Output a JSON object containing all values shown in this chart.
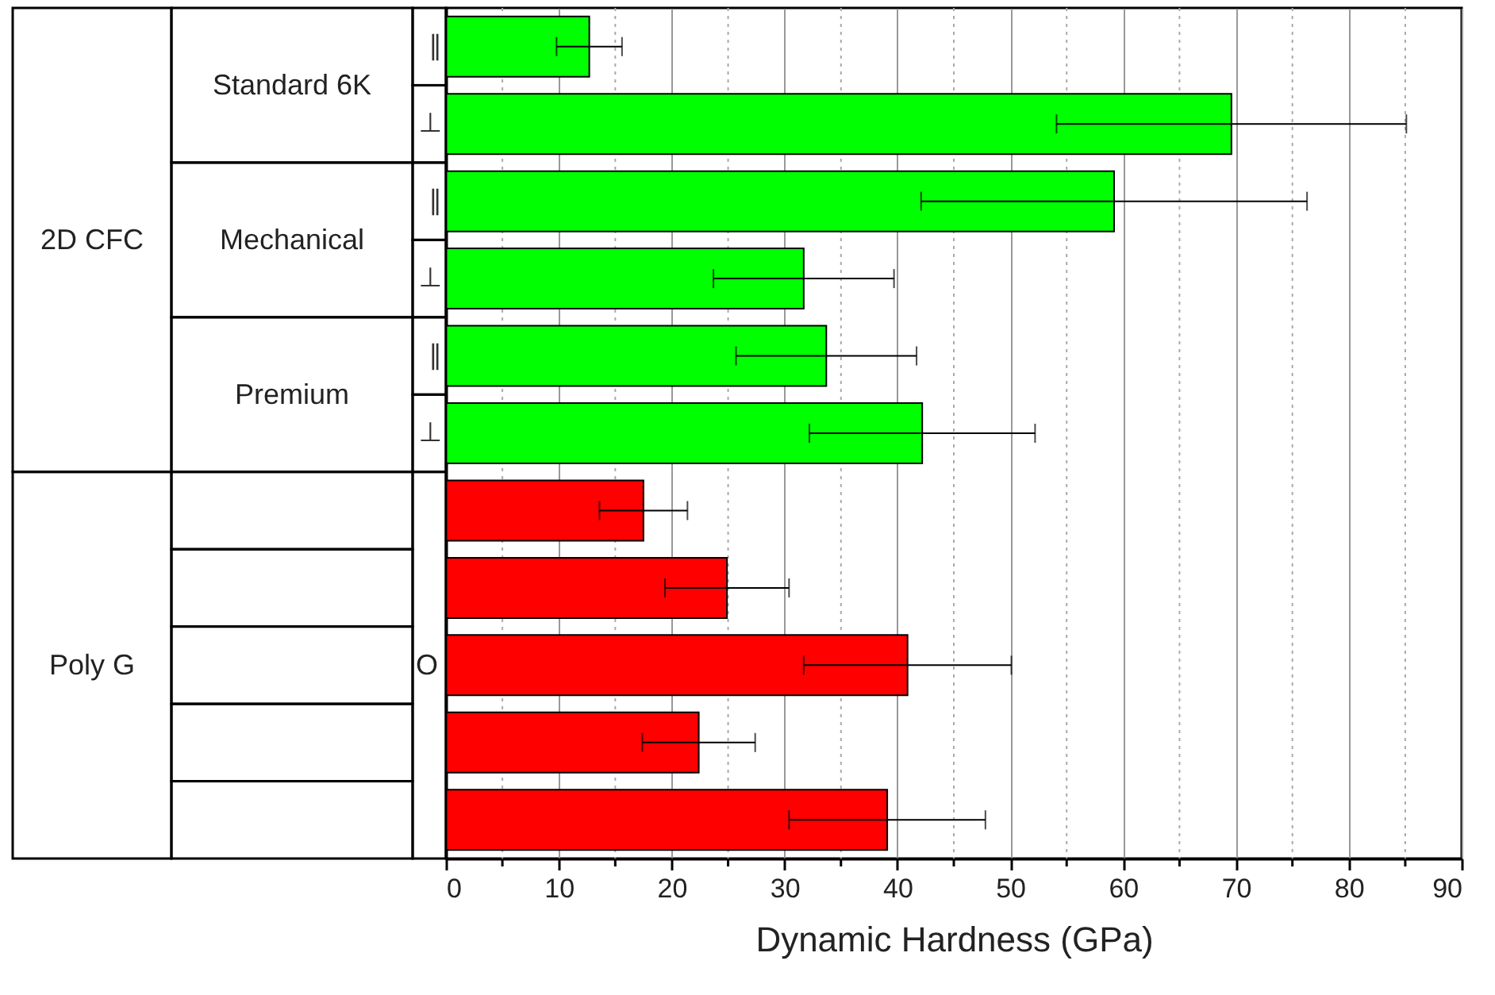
{
  "chart_data": {
    "type": "bar",
    "orientation": "horizontal",
    "xlabel": "Dynamic Hardness (GPa)",
    "categories": [
      "∥",
      "⊥",
      "∥",
      "⊥",
      "∥",
      "⊥",
      null,
      null,
      null,
      null,
      null
    ],
    "values": [
      12.7,
      69.6,
      59.2,
      31.7,
      33.7,
      42.2,
      17.5,
      24.9,
      40.9,
      22.4,
      39.1
    ],
    "errors": [
      2.9,
      15.5,
      17.1,
      8,
      8,
      10,
      3.9,
      5.5,
      9.2,
      5,
      8.7
    ],
    "colors": [
      "#00ff00",
      "#00ff00",
      "#00ff00",
      "#00ff00",
      "#00ff00",
      "#00ff00",
      "#ff0000",
      "#ff0000",
      "#ff0000",
      "#ff0000",
      "#ff0000"
    ],
    "xlim": [
      0,
      90
    ],
    "xticks": [
      0,
      {
        "value": 5,
        "label": null
      },
      10,
      {
        "value": 15,
        "label": null
      },
      20,
      {
        "value": 25,
        "label": null
      },
      30,
      {
        "value": 35,
        "label": null
      },
      40,
      {
        "value": 45,
        "label": null
      },
      50,
      {
        "value": 55,
        "label": null
      },
      60,
      {
        "value": 65,
        "label": null
      },
      70,
      {
        "value": 75,
        "label": null
      },
      80,
      {
        "value": 85,
        "label": null
      },
      90
    ],
    "grid": "x",
    "annotations": [
      "2D CFC",
      "Standard 6K",
      "Mechanical",
      "Premium",
      "Poly G",
      "O"
    ]
  }
}
